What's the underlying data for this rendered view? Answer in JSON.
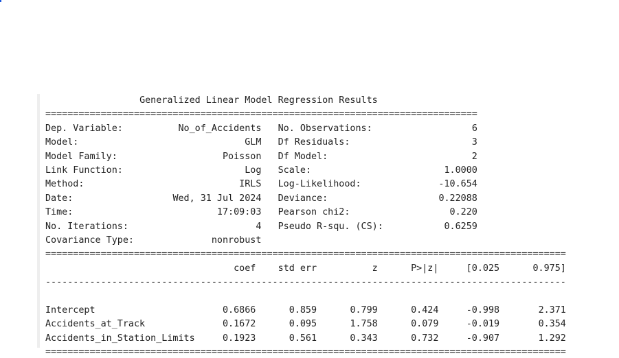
{
  "title": "Generalized Linear Model Regression Results",
  "info_left": [
    {
      "label": "Dep. Variable:",
      "value": "No_of_Accidents"
    },
    {
      "label": "Model:",
      "value": "GLM"
    },
    {
      "label": "Model Family:",
      "value": "Poisson"
    },
    {
      "label": "Link Function:",
      "value": "Log"
    },
    {
      "label": "Method:",
      "value": "IRLS"
    },
    {
      "label": "Date:",
      "value": "Wed, 31 Jul 2024"
    },
    {
      "label": "Time:",
      "value": "17:09:03"
    },
    {
      "label": "No. Iterations:",
      "value": "4"
    },
    {
      "label": "Covariance Type:",
      "value": "nonrobust"
    }
  ],
  "info_right": [
    {
      "label": "No. Observations:",
      "value": "6"
    },
    {
      "label": "Df Residuals:",
      "value": "3"
    },
    {
      "label": "Df Model:",
      "value": "2"
    },
    {
      "label": "Scale:",
      "value": "1.0000"
    },
    {
      "label": "Log-Likelihood:",
      "value": "-10.654"
    },
    {
      "label": "Deviance:",
      "value": "0.22088"
    },
    {
      "label": "Pearson chi2:",
      "value": "0.220"
    },
    {
      "label": "Pseudo R-squ. (CS):",
      "value": "0.6259"
    }
  ],
  "coef_headers": [
    "coef",
    "std err",
    "z",
    "P>|z|",
    "[0.025",
    "0.975]"
  ],
  "coef_rows": [
    {
      "name": "Intercept",
      "values": [
        "0.6866",
        "0.859",
        "0.799",
        "0.424",
        "-0.998",
        "2.371"
      ]
    },
    {
      "name": "Accidents_at_Track",
      "values": [
        "0.1672",
        "0.095",
        "1.758",
        "0.079",
        "-0.019",
        "0.354"
      ]
    },
    {
      "name": "Accidents_in_Station_Limits",
      "values": [
        "0.1923",
        "0.561",
        "0.343",
        "0.732",
        "-0.907",
        "1.292"
      ]
    }
  ]
}
